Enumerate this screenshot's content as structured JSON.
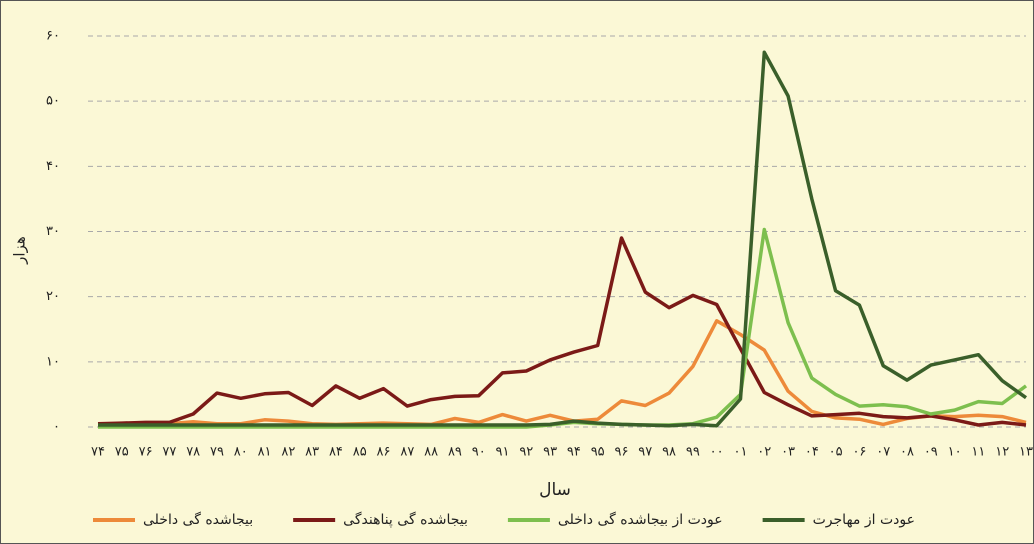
{
  "chart_data": {
    "type": "line",
    "x_label": "سال",
    "y_label": "هزار",
    "categories": [
      "۷۴",
      "۷۵",
      "۷۶",
      "۷۷",
      "۷۸",
      "۷۹",
      "۸۰",
      "۸۱",
      "۸۲",
      "۸۳",
      "۸۴",
      "۸۵",
      "۸۶",
      "۸۷",
      "۸۸",
      "۸۹",
      "۹۰",
      "۹۱",
      "۹۲",
      "۹۳",
      "۹۴",
      "۹۵",
      "۹۶",
      "۹۷",
      "۹۸",
      "۹۹",
      "۰۰",
      "۰۱",
      "۰۲",
      "۰۳",
      "۰۴",
      "۰۵",
      "۰۶",
      "۰۷",
      "۰۸",
      "۰۹",
      "۱۰",
      "۱۱",
      "۱۲",
      "۱۳"
    ],
    "series": [
      {
        "name": "بیجاشده گی داخلی",
        "color": "#ed8a3a",
        "values": [
          0.5,
          0.5,
          0.5,
          0.5,
          0.8,
          0.5,
          0.5,
          1.1,
          0.9,
          0.5,
          0.4,
          0.5,
          0.6,
          0.5,
          0.4,
          1.3,
          0.7,
          1.9,
          0.9,
          1.8,
          0.9,
          1.2,
          4,
          3.3,
          5.2,
          9.3,
          16.3,
          14.2,
          11.8,
          5.5,
          2.4,
          1.4,
          1.2,
          0.4,
          1.3,
          1.7,
          1.6,
          1.8,
          1.6,
          0.7
        ]
      },
      {
        "name": "بیجاشده گی پناهندگی",
        "color": "#7b1a17",
        "values": [
          0.5,
          0.6,
          0.7,
          0.7,
          2,
          5.2,
          4.4,
          5.1,
          5.3,
          3.3,
          6.3,
          4.4,
          5.9,
          3.2,
          4.2,
          4.7,
          4.8,
          8.3,
          8.6,
          10.3,
          11.5,
          12.5,
          29,
          20.7,
          18.3,
          20.2,
          18.8,
          12,
          5.3,
          3.4,
          1.7,
          1.9,
          2.1,
          1.6,
          1.4,
          1.7,
          1.1,
          0.3,
          0.7,
          0.3
        ]
      },
      {
        "name": "عودت از بیجاشده گی داخلی",
        "color": "#7dbf4e",
        "values": [
          0,
          0,
          0,
          0,
          0,
          0,
          0,
          0,
          0,
          0,
          0,
          0,
          0,
          0,
          0,
          0,
          0,
          0,
          0,
          0.3,
          0.7,
          0.5,
          0.4,
          0.3,
          0.3,
          0.5,
          1.5,
          5,
          30.3,
          16,
          7.5,
          5,
          3.2,
          3.4,
          3.1,
          2,
          2.6,
          3.9,
          3.6,
          6.3
        ]
      },
      {
        "name": "عودت از مهاجرت",
        "color": "#3a5f2a",
        "values": [
          0.3,
          0.3,
          0.3,
          0.3,
          0.3,
          0.3,
          0.3,
          0.3,
          0.3,
          0.3,
          0.3,
          0.3,
          0.3,
          0.3,
          0.3,
          0.3,
          0.3,
          0.3,
          0.3,
          0.4,
          0.9,
          0.6,
          0.4,
          0.3,
          0.2,
          0.4,
          0.2,
          4.3,
          57.5,
          50.8,
          35,
          20.9,
          18.7,
          9.4,
          7.2,
          9.5,
          10.3,
          11.1,
          7.1,
          4.5
        ]
      }
    ],
    "ylim": [
      0,
      60
    ],
    "yticks": [
      {
        "value": 0,
        "label": "۰"
      },
      {
        "value": 10,
        "label": "۱۰"
      },
      {
        "value": 20,
        "label": "۲۰"
      },
      {
        "value": 30,
        "label": "۳۰"
      },
      {
        "value": 40,
        "label": "۴۰"
      },
      {
        "value": 50,
        "label": "۵۰"
      },
      {
        "value": 60,
        "label": "۶۰"
      }
    ],
    "grid": true
  }
}
